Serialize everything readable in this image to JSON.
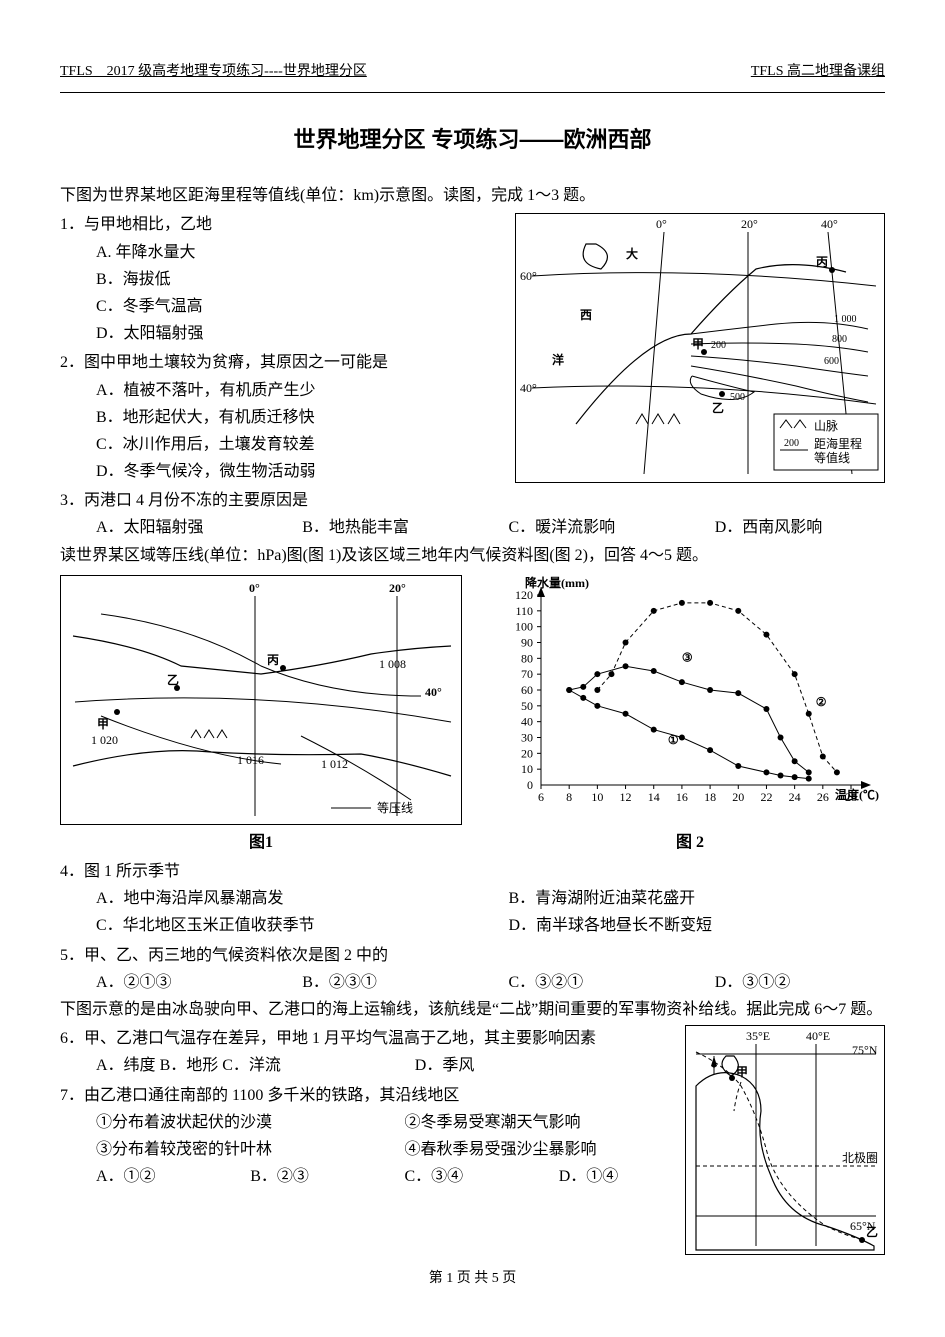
{
  "header": {
    "left": "TFLS　2017 级高考地理专项练习----世界地理分区",
    "right": "TFLS 高二地理备课组"
  },
  "title": "世界地理分区 专项练习——欧洲西部",
  "intro1": "下图为世界某地区距海里程等值线(单位：km)示意图。读图，完成 1～3 题。",
  "q1": {
    "stem": "1．与甲地相比，乙地",
    "a": "A. 年降水量大",
    "b": "B．海拔低",
    "c": "C．冬季气温高",
    "d": "D．太阳辐射强"
  },
  "q2": {
    "stem": "2．图中甲地土壤较为贫瘠，其原因之一可能是",
    "a": "A．植被不落叶，有机质产生少",
    "b": "B．地形起伏大，有机质迁移快",
    "c": "C．冰川作用后，土壤发育较差",
    "d": "D．冬季气候冷，微生物活动弱"
  },
  "q3": {
    "stem": "3．丙港口 4 月份不冻的主要原因是",
    "a": "A．太阳辐射强",
    "b": "B．地热能丰富",
    "c": "C．暖洋流影响",
    "d": "D．西南风影响"
  },
  "intro2": "读世界某区域等压线(单位：hPa)图(图 1)及该区域三地年内气候资料图(图 2)，回答 4～5 题。",
  "fig1_caption": "图1",
  "fig2_caption": "图 2",
  "q4": {
    "stem": "4．图 1 所示季节",
    "a": "A．地中海沿岸风暴潮高发",
    "b": "B．青海湖附近油菜花盛开",
    "c": "C．华北地区玉米正值收获季节",
    "d": "D．南半球各地昼长不断变短"
  },
  "q5": {
    "stem": "5．甲、乙、丙三地的气候资料依次是图 2 中的",
    "a": "A．②①③",
    "b": "B．②③①",
    "c": "C．③②①",
    "d": "D．③①②"
  },
  "intro3": "下图示意的是由冰岛驶向甲、乙港口的海上运输线，该航线是“二战”期间重要的军事物资补给线。据此完成 6～7 题。",
  "q6": {
    "stem": "6．甲、乙港口气温存在差异，甲地 1 月平均气温高于乙地，其主要影响因素",
    "a": "A．纬度",
    "b": "B．地形",
    "c": "C．洋流",
    "d": "D．季风"
  },
  "q7": {
    "stem": "7．由乙港口通往南部的 1100 多千米的铁路，其沿线地区",
    "o1": "①分布着波状起伏的沙漠",
    "o2": "②冬季易受寒潮天气影响",
    "o3": "③分布着较茂密的针叶林",
    "o4": "④春秋季易受强沙尘暴影响",
    "a": "A．①②",
    "b": "B．②③",
    "c": "C．③④",
    "d": "D．①④"
  },
  "map1": {
    "lon_labels": [
      "0°",
      "20°",
      "40°"
    ],
    "lat_labels": [
      "60°",
      "40°"
    ],
    "contours": [
      "200",
      "400",
      "600",
      "800",
      "1 000"
    ],
    "markers": {
      "jia_label": "甲",
      "yi_label": "乙",
      "bing_label": "丙"
    },
    "features": [
      "大",
      "西",
      "洋"
    ],
    "legend": {
      "mountain": "山脉",
      "contour": "距海里程等值线",
      "contour_value": "200"
    }
  },
  "isobar": {
    "lon_labels": [
      "0°",
      "20°"
    ],
    "lat_label": "40°",
    "values": [
      "1 008",
      "1 020",
      "1 016",
      "1 012"
    ],
    "markers": [
      "甲",
      "乙",
      "丙"
    ],
    "legend": "等压线"
  },
  "climate_chart": {
    "y_label": "降水量(mm)",
    "x_label": "温度(℃)",
    "y_min": 0,
    "y_max": 120,
    "y_step": 10,
    "x_min": 6,
    "x_max": 28,
    "x_step": 2,
    "series_labels": [
      "①",
      "②",
      "③"
    ],
    "series1": [
      [
        8,
        60
      ],
      [
        9,
        55
      ],
      [
        10,
        50
      ],
      [
        12,
        45
      ],
      [
        14,
        35
      ],
      [
        16,
        30
      ],
      [
        18,
        22
      ],
      [
        20,
        12
      ],
      [
        22,
        8
      ],
      [
        23,
        6
      ],
      [
        24,
        5
      ],
      [
        25,
        4
      ]
    ],
    "series2": [
      [
        10,
        60
      ],
      [
        11,
        70
      ],
      [
        12,
        90
      ],
      [
        14,
        110
      ],
      [
        16,
        115
      ],
      [
        18,
        115
      ],
      [
        20,
        110
      ],
      [
        22,
        95
      ],
      [
        24,
        70
      ],
      [
        25,
        45
      ],
      [
        26,
        18
      ],
      [
        27,
        8
      ]
    ],
    "series3": [
      [
        8,
        60
      ],
      [
        9,
        62
      ],
      [
        10,
        70
      ],
      [
        12,
        75
      ],
      [
        14,
        72
      ],
      [
        16,
        65
      ],
      [
        18,
        60
      ],
      [
        20,
        58
      ],
      [
        22,
        48
      ],
      [
        23,
        30
      ],
      [
        24,
        15
      ],
      [
        25,
        8
      ]
    ],
    "marker_size": 3
  },
  "map3": {
    "lon_labels": [
      "35°E",
      "40°E"
    ],
    "lat_labels": [
      "75°N",
      "65°N"
    ],
    "markers": {
      "jia": "甲",
      "yi": "乙",
      "arctic": "北极圈"
    }
  },
  "footer": "第 1 页 共 5 页"
}
